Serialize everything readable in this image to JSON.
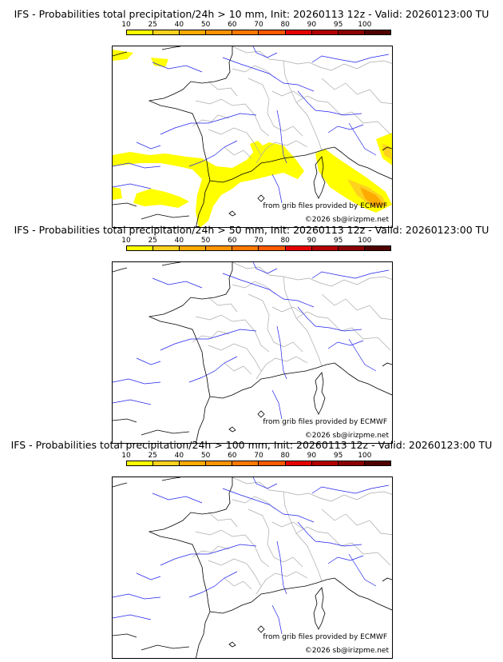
{
  "panels": [
    {
      "title": "IFS - Probabilities total precipitation/24h > 10 mm, Init: 20260113 12z - Valid: 20260123:00 TU",
      "source_credit": "from grib files provided by ECMWF",
      "copyright": "©2026 sb@irizpme.net"
    },
    {
      "title": "IFS - Probabilities total precipitation/24h > 50 mm, Init: 20260113 12z - Valid: 20260123:00 TU",
      "source_credit": "from grib files provided by ECMWF",
      "copyright": "©2026 sb@irizpme.net"
    },
    {
      "title": "IFS - Probabilities total precipitation/24h > 100 mm, Init: 20260113 12z - Valid: 20260123:00 TU",
      "source_credit": "from grib files provided by ECMWF",
      "copyright": "©2026 sb@irizpme.net"
    }
  ],
  "legend": {
    "ticks": [
      "10",
      "25",
      "40",
      "50",
      "60",
      "70",
      "80",
      "90",
      "95",
      "100"
    ],
    "colors": [
      "#ffff00",
      "#ffd21e",
      "#ffaa00",
      "#ff9400",
      "#ff7800",
      "#ff5a00",
      "#e60000",
      "#b40000",
      "#8c0000",
      "#500000"
    ]
  },
  "colors": {
    "coastline": "#000000",
    "borders": "#aaaaaa",
    "rivers": "#2222ee",
    "probability_low": "#ffff00",
    "probability_mid": "#ffd21e",
    "probability_high": "#ffaa00"
  }
}
